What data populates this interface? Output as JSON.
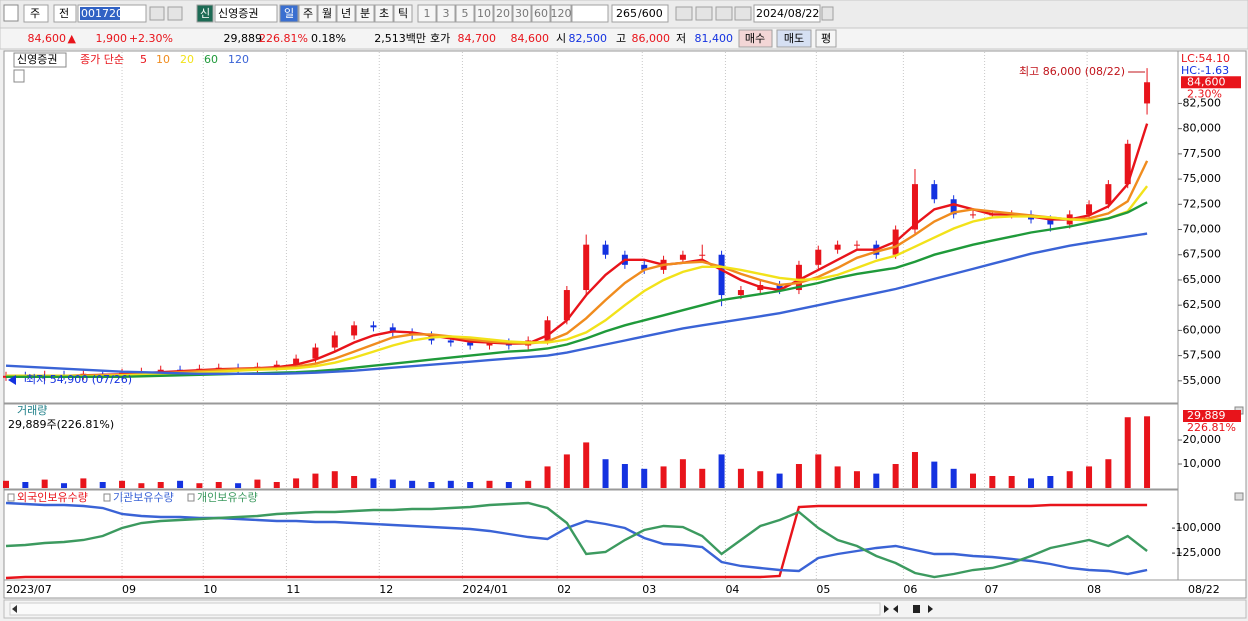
{
  "toolbar": {
    "market": "주",
    "prev": "전",
    "code": "001720",
    "badge": "신",
    "name": "신영증권",
    "periods": [
      "일",
      "주",
      "월",
      "년",
      "분",
      "초",
      "틱"
    ],
    "intervals": [
      "1",
      "3",
      "5",
      "10",
      "20",
      "30",
      "60",
      "120"
    ],
    "count": "265",
    "max": "/600",
    "date": "2024/08/22"
  },
  "quote": {
    "price": "84,600",
    "sign": "▲",
    "change": "1,900",
    "change_pct": "+2.30%",
    "volume": "29,889",
    "volume_ratio": "226.81%",
    "turnover": "0.18%",
    "amount": "2,513백만",
    "ask_label": "호가",
    "ask": "84,700",
    "bid": "84,600",
    "open_label": "시",
    "open": "82,500",
    "high_label": "고",
    "high": "86,000",
    "low_label": "저",
    "low": "81,400",
    "buy": "매수",
    "sell": "매도",
    "avg": "평"
  },
  "chart_data": [
    {
      "type": "candlestick",
      "title": "신영증권",
      "ma_label": "종가 단순",
      "up_color": "#e8141b",
      "down_color": "#1432e0",
      "xlim": [
        0,
        60.6
      ],
      "ylim": [
        52900,
        87600
      ],
      "yticks": [
        {
          "value": 55000,
          "label": "55,000"
        },
        {
          "value": 57500,
          "label": "57,500"
        },
        {
          "value": 60000,
          "label": "60,000"
        },
        {
          "value": 62500,
          "label": "62,500"
        },
        {
          "value": 65000,
          "label": "65,000"
        },
        {
          "value": 67500,
          "label": "67,500"
        },
        {
          "value": 70000,
          "label": "70,000"
        },
        {
          "value": 72500,
          "label": "72,500"
        },
        {
          "value": 75000,
          "label": "75,000"
        },
        {
          "value": 77500,
          "label": "77,500"
        },
        {
          "value": 80000,
          "label": "80,000"
        },
        {
          "value": 82500,
          "label": "82,500"
        }
      ],
      "open": [
        55300,
        55500,
        55400,
        55600,
        55500,
        55700,
        55600,
        55800,
        55900,
        56100,
        56000,
        56200,
        56300,
        56100,
        56400,
        56600,
        57200,
        58300,
        59500,
        60500,
        60300,
        59800,
        59500,
        59000,
        58800,
        58500,
        58800,
        58500,
        59000,
        61000,
        64000,
        68500,
        67500,
        66500,
        66000,
        67000,
        67500,
        67500,
        63500,
        64000,
        64500,
        64000,
        66500,
        68000,
        68500,
        68500,
        67500,
        70000,
        74500,
        73000,
        71500,
        71500,
        71500,
        71500,
        71000,
        70500,
        71500,
        72500,
        74500,
        82500
      ],
      "high": [
        55900,
        55900,
        56000,
        56000,
        56100,
        56100,
        56200,
        56300,
        56500,
        56500,
        56600,
        56700,
        56700,
        56800,
        57000,
        57600,
        58700,
        59900,
        60900,
        60900,
        60700,
        60200,
        59900,
        59400,
        59200,
        59200,
        59200,
        59400,
        61400,
        64400,
        69500,
        68900,
        67900,
        66900,
        67400,
        67900,
        68500,
        67900,
        64400,
        64900,
        64900,
        66900,
        68400,
        68900,
        68900,
        68900,
        70400,
        76000,
        74900,
        73400,
        71900,
        71900,
        71900,
        71900,
        71400,
        71900,
        72900,
        74900,
        78900,
        86000
      ],
      "low": [
        55000,
        54900,
        55000,
        55100,
        55100,
        55200,
        55200,
        55400,
        55500,
        55600,
        55600,
        55800,
        55700,
        55700,
        56000,
        56200,
        56800,
        57900,
        59100,
        59900,
        59400,
        59100,
        58600,
        58400,
        58100,
        58100,
        58100,
        58100,
        58600,
        60600,
        63600,
        67100,
        66100,
        65600,
        65600,
        66600,
        67100,
        62400,
        63100,
        63600,
        63600,
        63600,
        66100,
        67600,
        68100,
        67100,
        67100,
        69600,
        72600,
        71100,
        71100,
        71100,
        71100,
        70600,
        69800,
        70100,
        71100,
        72100,
        74100,
        81400
      ],
      "close": [
        55500,
        55400,
        55600,
        55500,
        55700,
        55600,
        55800,
        55900,
        56100,
        56000,
        56200,
        56300,
        56100,
        56400,
        56600,
        57200,
        58300,
        59500,
        60500,
        60300,
        59800,
        59500,
        59000,
        58800,
        58500,
        58800,
        58500,
        59000,
        61000,
        64000,
        68500,
        67500,
        66500,
        66000,
        67000,
        67500,
        67500,
        63500,
        64000,
        64500,
        64000,
        66500,
        68000,
        68500,
        68500,
        67500,
        70000,
        74500,
        73000,
        71500,
        71500,
        71500,
        71500,
        71000,
        70500,
        71500,
        72500,
        74500,
        78500,
        84600
      ],
      "series": [
        {
          "name": "5",
          "color": "#e8141b",
          "values": [
            55500,
            55500,
            55500,
            55500,
            55550,
            55600,
            55650,
            55750,
            55850,
            55950,
            56050,
            56150,
            56200,
            56250,
            56350,
            56600,
            57100,
            57900,
            58800,
            59500,
            59900,
            59800,
            59500,
            59200,
            58900,
            58800,
            58700,
            58700,
            59500,
            61000,
            63500,
            65500,
            67000,
            67000,
            66500,
            66700,
            67000,
            66000,
            65000,
            64300,
            64000,
            65000,
            66000,
            67000,
            68000,
            68000,
            68800,
            70500,
            72000,
            72500,
            72000,
            71500,
            71500,
            71300,
            71000,
            71000,
            71400,
            72300,
            74500,
            80500
          ]
        },
        {
          "name": "10",
          "color": "#f08c1e",
          "values": [
            55500,
            55500,
            55500,
            55500,
            55500,
            55550,
            55600,
            55650,
            55750,
            55850,
            55950,
            56050,
            56150,
            56200,
            56250,
            56400,
            56700,
            57200,
            57900,
            58600,
            59300,
            59600,
            59600,
            59400,
            59100,
            58900,
            58800,
            58700,
            58900,
            59700,
            61200,
            63000,
            64700,
            66000,
            66500,
            66700,
            66800,
            66300,
            65600,
            65000,
            64500,
            64700,
            65300,
            66200,
            67200,
            67800,
            68300,
            69500,
            70800,
            71700,
            72000,
            71800,
            71600,
            71400,
            71200,
            71000,
            71100,
            71600,
            72800,
            76800
          ]
        },
        {
          "name": "20",
          "color": "#f2e21a",
          "values": [
            55500,
            55500,
            55500,
            55500,
            55500,
            55500,
            55550,
            55600,
            55650,
            55700,
            55800,
            55900,
            56000,
            56100,
            56150,
            56250,
            56450,
            56800,
            57300,
            57900,
            58500,
            59000,
            59300,
            59400,
            59300,
            59100,
            58900,
            58800,
            58800,
            59100,
            59800,
            61000,
            62500,
            63900,
            65000,
            65800,
            66300,
            66300,
            66000,
            65600,
            65200,
            65000,
            65100,
            65500,
            66200,
            66900,
            67400,
            68300,
            69200,
            70100,
            70800,
            71200,
            71300,
            71300,
            71200,
            71000,
            70900,
            71100,
            71800,
            74300
          ]
        },
        {
          "name": "60",
          "color": "#1f9a3a",
          "values": [
            55400,
            55400,
            55400,
            55400,
            55400,
            55400,
            55400,
            55450,
            55500,
            55550,
            55600,
            55650,
            55700,
            55750,
            55800,
            55850,
            55950,
            56100,
            56300,
            56500,
            56700,
            56900,
            57100,
            57300,
            57500,
            57700,
            57900,
            58000,
            58200,
            58600,
            59200,
            59900,
            60500,
            61000,
            61500,
            62000,
            62500,
            63000,
            63300,
            63600,
            63900,
            64300,
            64700,
            65200,
            65600,
            65900,
            66200,
            66800,
            67500,
            68000,
            68500,
            68900,
            69300,
            69700,
            70000,
            70300,
            70700,
            71100,
            71700,
            72700
          ]
        },
        {
          "name": "120",
          "color": "#3a63d6",
          "values": [
            56500,
            56400,
            56300,
            56200,
            56100,
            56000,
            55900,
            55850,
            55800,
            55750,
            55700,
            55700,
            55700,
            55700,
            55700,
            55750,
            55800,
            55900,
            56000,
            56150,
            56300,
            56450,
            56600,
            56750,
            56900,
            57050,
            57200,
            57350,
            57500,
            57800,
            58200,
            58600,
            59000,
            59400,
            59800,
            60200,
            60500,
            60800,
            61100,
            61400,
            61700,
            62100,
            62500,
            62900,
            63300,
            63700,
            64100,
            64600,
            65100,
            65600,
            66100,
            66600,
            67100,
            67600,
            68000,
            68400,
            68700,
            69000,
            69300,
            69600
          ]
        }
      ],
      "annotations": {
        "high": "최고 86,000 (08/22)",
        "low": "최저 54,900 (07/26)"
      },
      "lc": "LC:54.10",
      "hc": "HC:-1.63",
      "last_label": "84,600",
      "last_change": "2.30%"
    },
    {
      "type": "bar",
      "title": "거래량",
      "summary": "29,889주(226.81%)",
      "last_label": "29,889",
      "last_change": "226.81%",
      "xlim": [
        0,
        60.6
      ],
      "ylim": [
        0,
        34600
      ],
      "yticks": [
        {
          "value": 10000,
          "label": "10,000"
        },
        {
          "value": 20000,
          "label": "20,000"
        }
      ],
      "values": [
        3000,
        2500,
        3500,
        2000,
        4000,
        2500,
        3000,
        2000,
        2500,
        3000,
        2000,
        2500,
        2000,
        3500,
        2500,
        4000,
        6000,
        7000,
        5000,
        4000,
        3500,
        3000,
        2500,
        3000,
        2500,
        3000,
        2500,
        3000,
        9000,
        14000,
        19000,
        12000,
        10000,
        8000,
        9000,
        12000,
        8000,
        14000,
        8000,
        7000,
        6000,
        10000,
        14000,
        9000,
        7000,
        6000,
        10000,
        15000,
        11000,
        8000,
        6000,
        5000,
        5000,
        4000,
        5000,
        7000,
        9000,
        12000,
        29500,
        29889
      ]
    },
    {
      "type": "line",
      "xlim": [
        0,
        60.6
      ],
      "ylim": [
        -151000,
        -63000
      ],
      "yticks": [
        {
          "value": -100000,
          "label": "-100,000"
        },
        {
          "value": -125000,
          "label": "-125,000"
        }
      ],
      "xticks": [
        {
          "value": 0,
          "label": "2023/07"
        },
        {
          "value": 6.0,
          "label": "09"
        },
        {
          "value": 10.2,
          "label": "10"
        },
        {
          "value": 14.5,
          "label": "11"
        },
        {
          "value": 19.3,
          "label": "12"
        },
        {
          "value": 23.6,
          "label": "2024/01"
        },
        {
          "value": 28.5,
          "label": "02"
        },
        {
          "value": 32.9,
          "label": "03"
        },
        {
          "value": 37.2,
          "label": "04"
        },
        {
          "value": 41.9,
          "label": "05"
        },
        {
          "value": 46.4,
          "label": "06"
        },
        {
          "value": 50.6,
          "label": "07"
        },
        {
          "value": 55.9,
          "label": "08"
        }
      ],
      "last_date": "08/22",
      "series": [
        {
          "name": "외국인보유수량",
          "color": "#e8141b",
          "values": [
            -150000,
            -149000,
            -149000,
            -149000,
            -149000,
            -149000,
            -149000,
            -149000,
            -149000,
            -149000,
            -149000,
            -149000,
            -149000,
            -149000,
            -149000,
            -149000,
            -149000,
            -149000,
            -149000,
            -149000,
            -149000,
            -149000,
            -149000,
            -149000,
            -149000,
            -149000,
            -149000,
            -149000,
            -149000,
            -149000,
            -149000,
            -149000,
            -149000,
            -149000,
            -149000,
            -149000,
            -149000,
            -149000,
            -149000,
            -149000,
            -148000,
            -79000,
            -78000,
            -78000,
            -78000,
            -78000,
            -78000,
            -78000,
            -78000,
            -78000,
            -78000,
            -78000,
            -78000,
            -78000,
            -77000,
            -77000,
            -77000,
            -77000,
            -77000,
            -77000
          ]
        },
        {
          "name": "기관보유수량",
          "color": "#3a63d6",
          "values": [
            -75000,
            -76000,
            -77000,
            -77000,
            -78000,
            -80000,
            -86000,
            -88000,
            -89000,
            -89000,
            -90000,
            -90000,
            -91000,
            -92000,
            -93000,
            -93000,
            -94000,
            -94000,
            -95000,
            -96000,
            -97000,
            -98000,
            -99000,
            -100000,
            -101000,
            -103000,
            -106000,
            -109000,
            -111000,
            -100000,
            -93000,
            -96000,
            -100000,
            -110000,
            -116000,
            -117000,
            -119000,
            -134000,
            -138000,
            -140000,
            -142000,
            -143000,
            -130000,
            -126000,
            -123000,
            -120000,
            -118000,
            -122000,
            -126000,
            -126000,
            -128000,
            -129000,
            -131000,
            -133000,
            -136000,
            -140000,
            -142000,
            -143000,
            -146000,
            -142000
          ]
        },
        {
          "name": "개인보유수량",
          "color": "#3c9a5f",
          "values": [
            -118000,
            -117000,
            -115000,
            -114000,
            -112000,
            -108000,
            -100000,
            -95000,
            -93000,
            -92000,
            -91000,
            -90000,
            -89000,
            -88000,
            -86000,
            -85000,
            -84000,
            -84000,
            -83000,
            -82000,
            -82000,
            -81000,
            -81000,
            -80000,
            -79000,
            -77000,
            -76000,
            -75000,
            -80000,
            -95000,
            -126000,
            -124000,
            -112000,
            -102000,
            -98000,
            -99000,
            -108000,
            -126000,
            -112000,
            -98000,
            -92000,
            -84000,
            -100000,
            -112000,
            -118000,
            -128000,
            -135000,
            -145000,
            -149000,
            -146000,
            -142000,
            -140000,
            -135000,
            -128000,
            -120000,
            -116000,
            -112000,
            -118000,
            -108000,
            -123000
          ]
        }
      ]
    }
  ]
}
